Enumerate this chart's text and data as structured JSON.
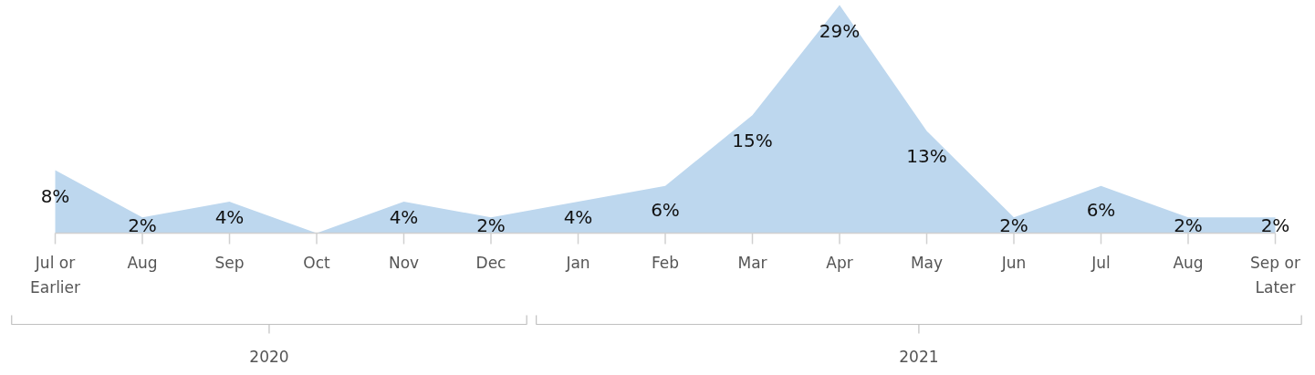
{
  "chart_data": {
    "type": "area",
    "categories": [
      "Jul or\nEarlier",
      "Aug",
      "Sep",
      "Oct",
      "Nov",
      "Dec",
      "Jan",
      "Feb",
      "Mar",
      "Apr",
      "May",
      "Jun",
      "Jul",
      "Aug",
      "Sep or\nLater"
    ],
    "values": [
      8,
      2,
      4,
      0,
      4,
      2,
      4,
      6,
      15,
      29,
      13,
      2,
      6,
      2,
      2
    ],
    "value_labels": [
      "8%",
      "2%",
      "4%",
      null,
      "4%",
      "2%",
      "4%",
      "6%",
      "15%",
      "29%",
      "13%",
      "2%",
      "6%",
      "2%",
      "2%"
    ],
    "color": "#bdd7ee",
    "annotations": [
      "2020",
      "2021"
    ]
  }
}
